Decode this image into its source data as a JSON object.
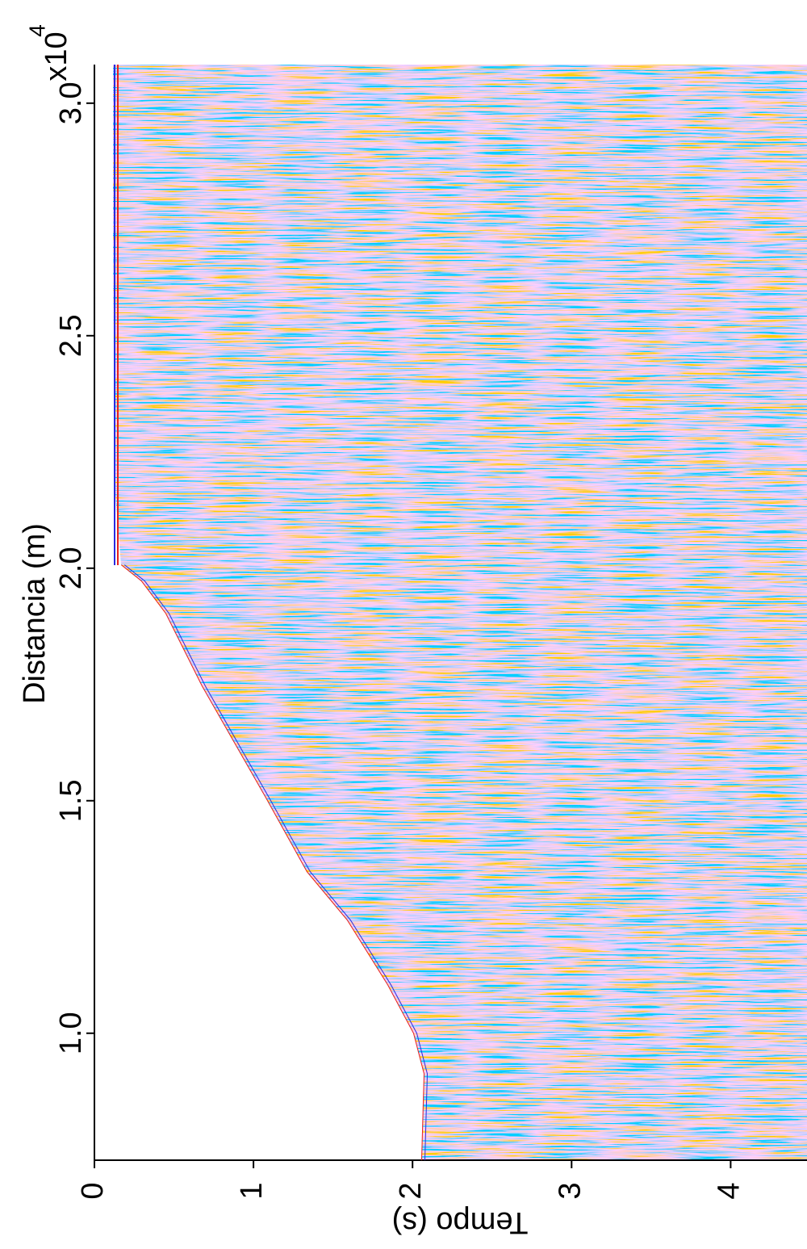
{
  "chart_data": {
    "type": "seismic",
    "x_label": "Tempo (s)",
    "y_label": "Distancia (m)",
    "y_scale_label": "x10",
    "y_scale_exponent": "4",
    "xlim": [
      0,
      4.48
    ],
    "xticks": [
      0,
      1,
      2,
      3,
      4
    ],
    "ylim": [
      0.727,
      3.083
    ],
    "yticks": [
      {
        "value": 1.0,
        "label": "1.0"
      },
      {
        "value": 1.5,
        "label": "1.5"
      },
      {
        "value": 2.0,
        "label": "2.0"
      },
      {
        "value": 2.5,
        "label": "2.5"
      },
      {
        "value": 3.0,
        "label": "3.0"
      }
    ],
    "colors": [
      "#e8201c",
      "#2a2ae0"
    ]
  }
}
